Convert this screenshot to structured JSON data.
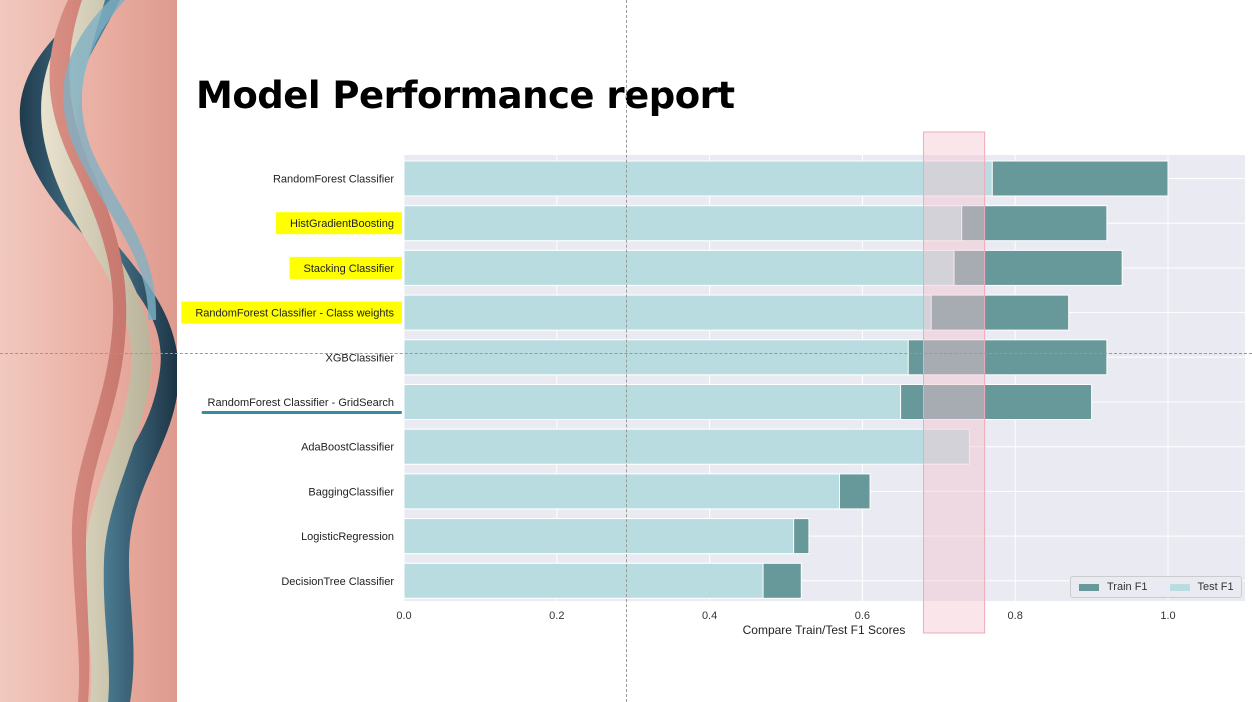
{
  "slide": {
    "title": "Model Performance report"
  },
  "decor": {
    "left_panel": "abstract-ribbon-art"
  },
  "chart_data": {
    "type": "bar",
    "orientation": "horizontal",
    "categories": [
      "RandomForest Classifier",
      "HistGradientBoosting",
      "Stacking Classifier",
      "RandomForest Classifier - Class weights",
      "XGBClassifier",
      "RandomForest Classifier - GridSearch",
      "AdaBoostClassifier",
      "BaggingClassifier",
      "LogisticRegression",
      "DecisionTree Classifier"
    ],
    "series": [
      {
        "name": "Train F1",
        "color": "#67989a",
        "values": [
          1.0,
          0.92,
          0.94,
          0.87,
          0.92,
          0.9,
          0.58,
          0.61,
          0.53,
          0.52
        ]
      },
      {
        "name": "Test F1",
        "color": "#b8dcdf",
        "values": [
          0.77,
          0.73,
          0.72,
          0.69,
          0.66,
          0.65,
          0.74,
          0.57,
          0.51,
          0.47
        ]
      }
    ],
    "xlabel": "Compare Train/Test F1 Scores",
    "ylabel": "",
    "xlim": [
      0,
      1.1
    ],
    "xticks": [
      "0.0",
      "0.2",
      "0.4",
      "0.6",
      "0.8",
      "1.0"
    ],
    "grid": true,
    "legend": "bottom-right",
    "highlighted_categories": [
      "HistGradientBoosting",
      "Stacking Classifier",
      "RandomForest Classifier - Class weights"
    ],
    "highlight_color": "#ffff00",
    "underlined_category": "RandomForest Classifier - GridSearch",
    "highlight_band": {
      "x_range": [
        0.68,
        0.76
      ],
      "color": "#f4c6d0"
    },
    "colors": {
      "plot_bg": "#eaeaf2",
      "grid": "#ffffff"
    }
  }
}
